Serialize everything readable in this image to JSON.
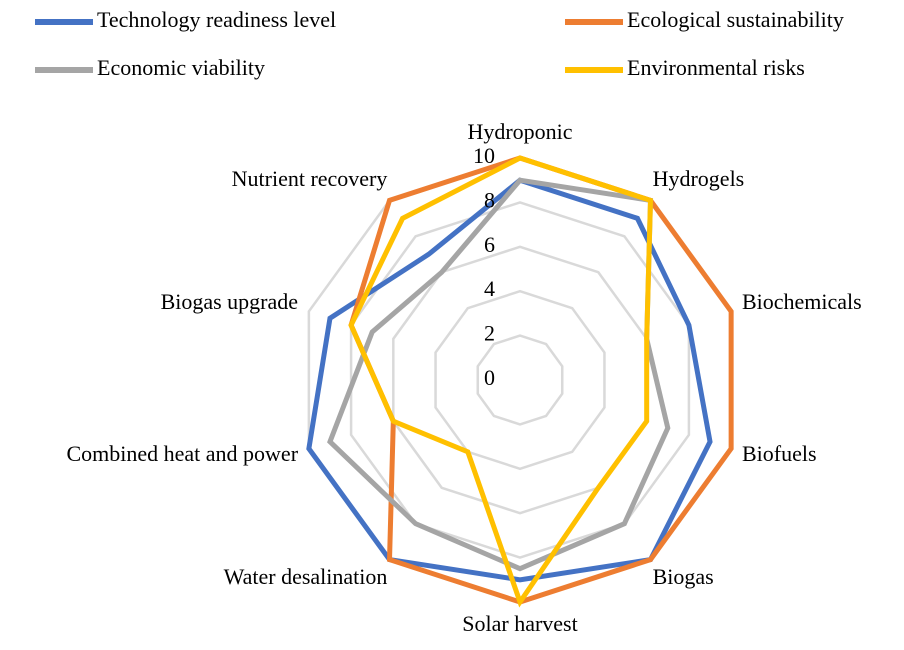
{
  "chart_data": {
    "type": "radar",
    "categories": [
      "Hydroponic",
      "Hydrogels",
      "Biochemicals",
      "Biofuels",
      "Biogas",
      "Solar harvest",
      "Water desalination",
      "Combined heat and power",
      "Biogas upgrade",
      "Nutrient recovery"
    ],
    "series": [
      {
        "name": "Technology readiness level",
        "color": "#4472c4",
        "values": [
          9,
          9,
          8,
          9,
          10,
          9,
          10,
          10,
          9,
          7
        ]
      },
      {
        "name": "Ecological sustainability",
        "color": "#ed7d31",
        "values": [
          10,
          10,
          10,
          10,
          10,
          10,
          10,
          6,
          8,
          10
        ]
      },
      {
        "name": "Economic viability",
        "color": "#a5a5a5",
        "values": [
          9,
          10,
          6,
          7,
          8,
          8.5,
          8,
          9,
          7,
          6
        ]
      },
      {
        "name": "Environmental risks",
        "color": "#ffc000",
        "values": [
          10,
          10,
          6,
          6,
          6,
          10,
          4,
          6,
          8,
          9
        ]
      }
    ],
    "ylim": [
      0,
      10
    ],
    "yticks": [
      0,
      2,
      4,
      6,
      8,
      10
    ],
    "grid": true,
    "legend": "top"
  }
}
